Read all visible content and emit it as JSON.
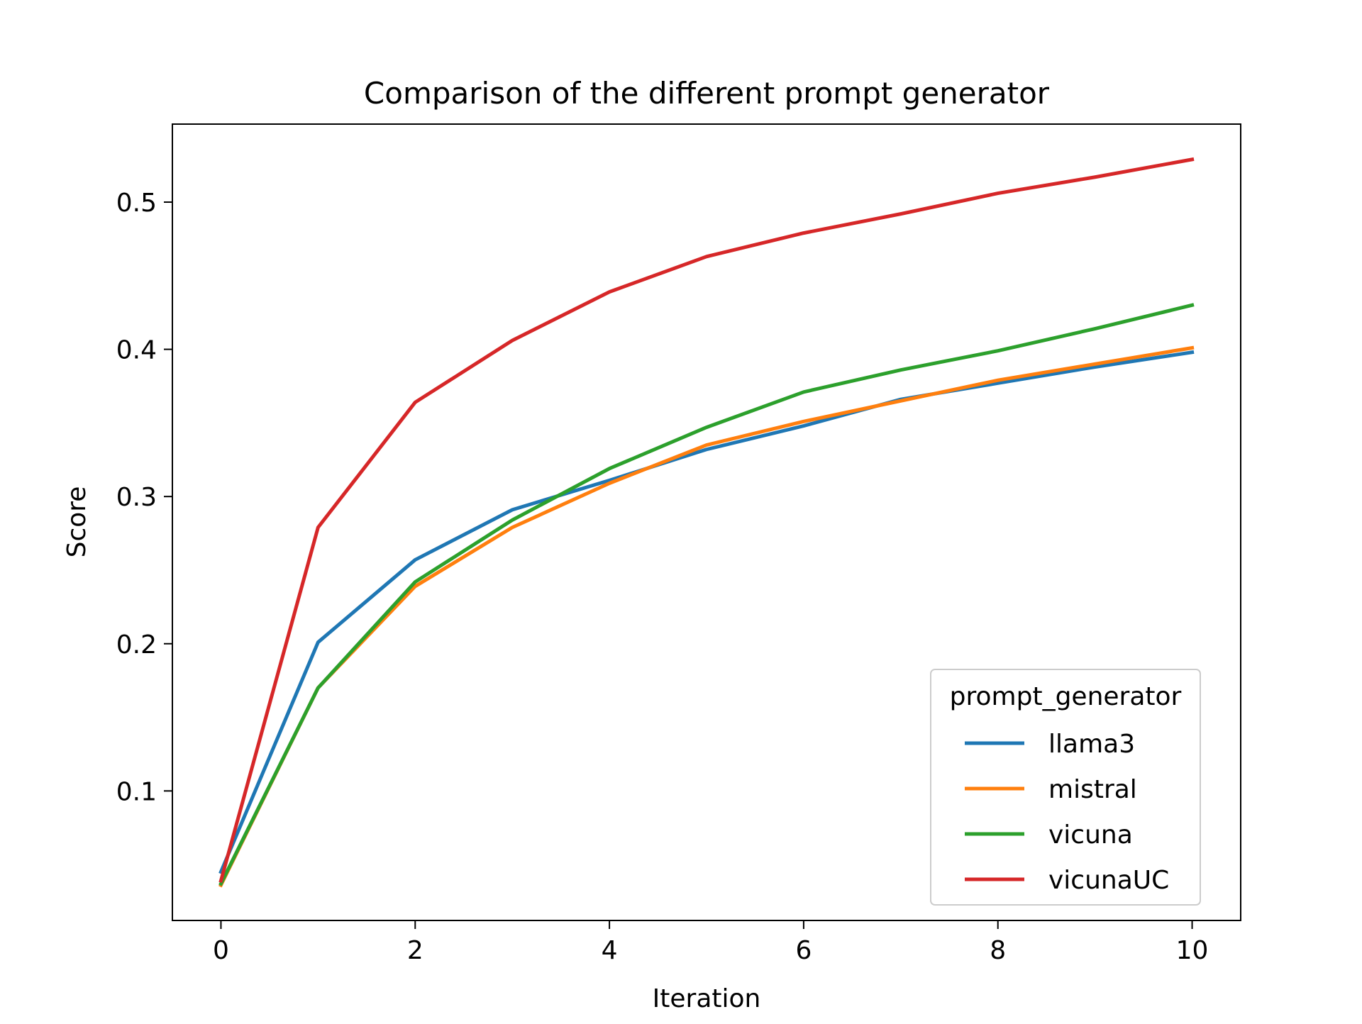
{
  "chart_data": {
    "type": "line",
    "title": "Comparison of the different prompt generator",
    "xlabel": "Iteration",
    "ylabel": "Score",
    "xlim": [
      -0.5,
      10.5
    ],
    "ylim": [
      0.012,
      0.553
    ],
    "xticks": [
      0,
      2,
      4,
      6,
      8,
      10
    ],
    "xtick_labels": [
      "0",
      "2",
      "4",
      "6",
      "8",
      "10"
    ],
    "yticks": [
      0.1,
      0.2,
      0.3,
      0.4,
      0.5
    ],
    "ytick_labels": [
      "0.1",
      "0.2",
      "0.3",
      "0.4",
      "0.5"
    ],
    "grid": false,
    "legend": {
      "title": "prompt_generator",
      "placement": "lower-right"
    },
    "x": [
      0,
      1,
      2,
      3,
      4,
      5,
      6,
      7,
      8,
      9,
      10
    ],
    "series": [
      {
        "name": "llama3",
        "color": "#1f77b4",
        "values": [
          0.045,
          0.201,
          0.257,
          0.291,
          0.311,
          0.332,
          0.348,
          0.366,
          0.377,
          0.388,
          0.398
        ]
      },
      {
        "name": "mistral",
        "color": "#ff7f0e",
        "values": [
          0.036,
          0.17,
          0.239,
          0.279,
          0.309,
          0.335,
          0.351,
          0.365,
          0.379,
          0.39,
          0.401
        ]
      },
      {
        "name": "vicuna",
        "color": "#2ca02c",
        "values": [
          0.037,
          0.17,
          0.242,
          0.284,
          0.319,
          0.347,
          0.371,
          0.386,
          0.399,
          0.414,
          0.43
        ]
      },
      {
        "name": "vicunaUC",
        "color": "#d62728",
        "values": [
          0.039,
          0.279,
          0.364,
          0.406,
          0.439,
          0.463,
          0.479,
          0.492,
          0.506,
          0.517,
          0.529
        ]
      }
    ]
  }
}
